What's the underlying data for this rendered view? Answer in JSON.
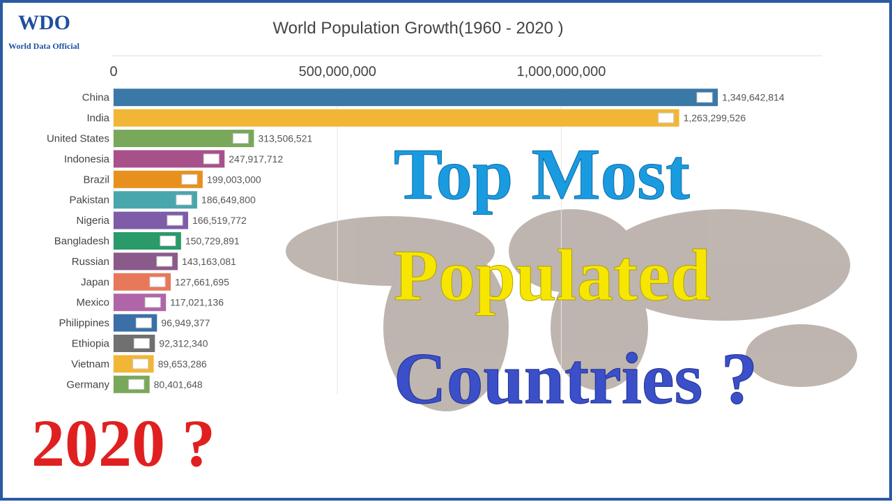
{
  "chart_data": {
    "type": "barh",
    "title": "World Population Growth(1960 - 2020 )",
    "categories": [
      "China",
      "India",
      "United States",
      "Indonesia",
      "Brazil",
      "Pakistan",
      "Nigeria",
      "Bangladesh",
      "Russian",
      "Japan",
      "Mexico",
      "Philippines",
      "Ethiopia",
      "Vietnam",
      "Germany"
    ],
    "values": [
      1349642814,
      1263299526,
      313506521,
      247917712,
      199003000,
      186649800,
      166519772,
      150729891,
      143163081,
      127661695,
      117021136,
      96949377,
      92312340,
      89653286,
      80401648
    ],
    "value_labels": [
      "1,349,642,814",
      "1,263,299,526",
      "313,506,521",
      "247,917,712",
      "199,003,000",
      "186,649,800",
      "166,519,772",
      "150,729,891",
      "143,163,081",
      "127,661,695",
      "117,021,136",
      "96,949,377",
      "92,312,340",
      "89,653,286",
      "80,401,648"
    ],
    "colors": [
      "#3a78a8",
      "#f2b636",
      "#79a85a",
      "#a8508a",
      "#e8901e",
      "#4aa6ad",
      "#7e5ca8",
      "#2a9a6a",
      "#8a5a8a",
      "#e8785a",
      "#b065a8",
      "#3a6fa8",
      "#707070",
      "#f2b636",
      "#79a85a"
    ],
    "xlim": [
      0,
      1583000000
    ],
    "xticks": [
      0,
      {
        "value": 500000000,
        "label": "500,000,000"
      },
      {
        "value": 1000000000,
        "label": "1,000,000,000"
      }
    ],
    "grid": true
  },
  "logo": {
    "mark": "WDO",
    "name": "World Data Official"
  },
  "overlay": {
    "line1": "Top Most",
    "line2": "Populated",
    "line3": "Countries ?",
    "year": "2020 ?"
  }
}
